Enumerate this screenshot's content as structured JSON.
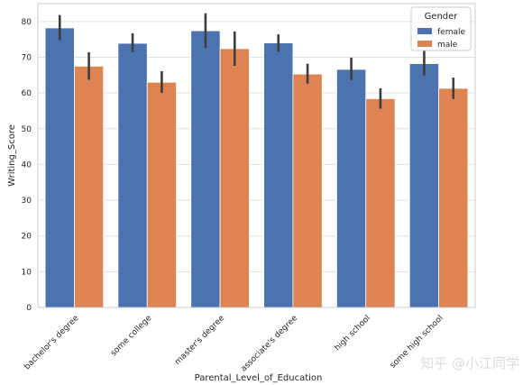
{
  "chart_data": {
    "type": "bar",
    "xlabel": "Parental_Level_of_Education",
    "ylabel": "Writing_Score",
    "ylim": [
      0,
      85
    ],
    "yticks": [
      0,
      10,
      20,
      30,
      40,
      50,
      60,
      70,
      80
    ],
    "categories": [
      "bachelor's degree",
      "some college",
      "master's degree",
      "associate's degree",
      "high school",
      "some high school"
    ],
    "series": [
      {
        "name": "female",
        "color": "#4c72b0",
        "values": [
          78.2,
          73.9,
          77.4,
          74.0,
          66.6,
          68.2
        ],
        "ci": [
          [
            74.8,
            81.8
          ],
          [
            71.4,
            76.7
          ],
          [
            72.6,
            82.3
          ],
          [
            71.6,
            76.4
          ],
          [
            63.6,
            69.9
          ],
          [
            64.9,
            71.8
          ]
        ]
      },
      {
        "name": "male",
        "color": "#dd8452",
        "values": [
          67.5,
          63.0,
          72.4,
          65.3,
          58.4,
          61.3
        ],
        "ci": [
          [
            63.7,
            71.4
          ],
          [
            60.0,
            66.1
          ],
          [
            67.6,
            77.2
          ],
          [
            62.6,
            68.2
          ],
          [
            55.6,
            61.3
          ],
          [
            58.3,
            64.3
          ]
        ]
      }
    ],
    "legend": {
      "title": "Gender",
      "position": "top-right"
    },
    "grid": {
      "y": true,
      "x": false
    }
  },
  "watermark": "知乎 @小江同学"
}
